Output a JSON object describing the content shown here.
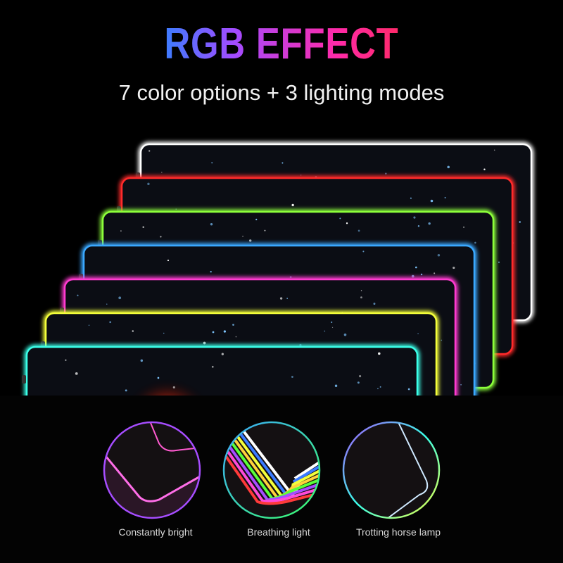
{
  "header": {
    "title": "RGB EFFECT",
    "subtitle": "7 color options + 3 lighting modes"
  },
  "pads": {
    "edge_colors": [
      "#ffffff",
      "#ff2a2a",
      "#8cff3a",
      "#3aa8ff",
      "#ff3ad0",
      "#f4ff3a",
      "#3affe8"
    ]
  },
  "modes": [
    {
      "label": "Constantly bright",
      "ring_colors": [
        "#a64dff"
      ],
      "edge_colors": [
        "#ff6ee8"
      ]
    },
    {
      "label": "Breathing light",
      "ring_colors": [
        "#3aa8ff",
        "#3aff6a"
      ],
      "edge_colors": [
        "#ffffff",
        "#3a7bff",
        "#f4ff3a",
        "#ffd23a",
        "#5aff3a",
        "#a64dff",
        "#ff4ad8",
        "#ff3a3a"
      ]
    },
    {
      "label": "Trotting horse lamp",
      "ring_colors": [
        "#a64dff",
        "#3affe8",
        "#f4ff3a"
      ],
      "edge_colors": [
        "#cfe9ff"
      ]
    }
  ]
}
